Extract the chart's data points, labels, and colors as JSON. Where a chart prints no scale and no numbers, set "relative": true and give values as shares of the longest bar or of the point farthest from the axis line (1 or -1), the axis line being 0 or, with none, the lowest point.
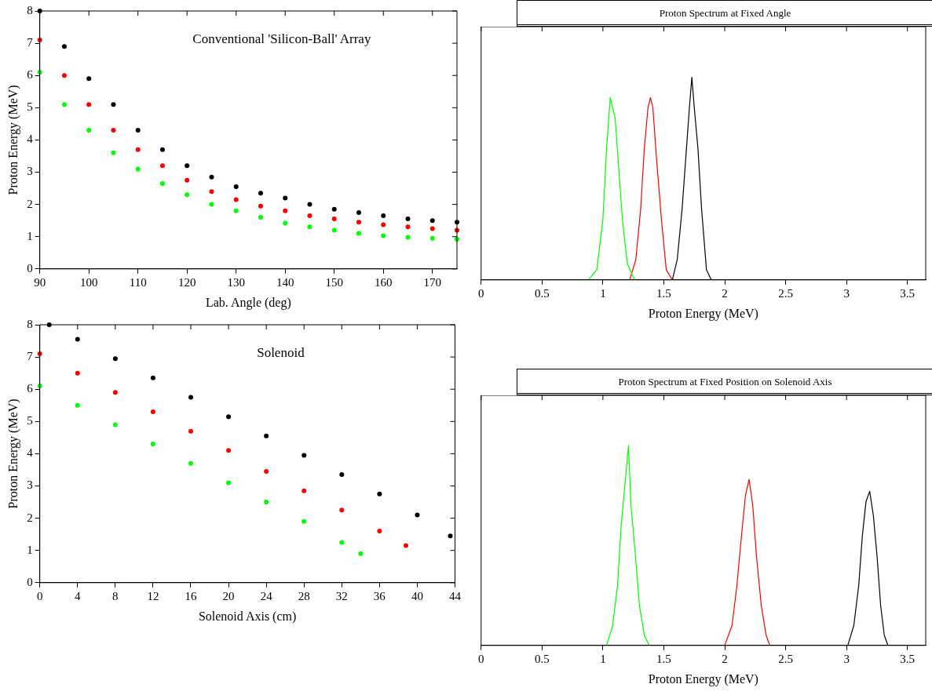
{
  "chart_data": [
    {
      "type": "scatter",
      "xlabel": "Lab. Angle (deg)",
      "ylabel": "Proton Energy (MeV)",
      "annotations": [
        "Conventional 'Silicon-Ball' Array"
      ],
      "xlim": [
        90,
        175
      ],
      "xticks": [
        90,
        100,
        110,
        120,
        130,
        140,
        150,
        160,
        170
      ],
      "ylim": [
        0,
        8
      ],
      "yticks": [
        0,
        1,
        2,
        3,
        4,
        5,
        6,
        7,
        8
      ],
      "grid": false,
      "legend": false,
      "marker": "circle",
      "x": [
        90,
        95,
        100,
        105,
        110,
        115,
        120,
        125,
        130,
        135,
        140,
        145,
        150,
        155,
        160,
        165,
        170,
        175
      ],
      "series": [
        {
          "color": "#000000",
          "values": [
            8,
            6.9,
            5.9,
            5.1,
            4.3,
            3.7,
            3.2,
            2.85,
            2.55,
            2.35,
            2.2,
            2.0,
            1.85,
            1.75,
            1.65,
            1.55,
            1.5,
            1.45
          ]
        },
        {
          "color": "#ff0000",
          "values": [
            7.1,
            6.0,
            5.1,
            4.3,
            3.7,
            3.2,
            2.75,
            2.4,
            2.15,
            1.95,
            1.8,
            1.65,
            1.55,
            1.45,
            1.37,
            1.3,
            1.25,
            1.2
          ]
        },
        {
          "color": "#00ff00",
          "values": [
            6.1,
            5.1,
            4.3,
            3.6,
            3.1,
            2.65,
            2.3,
            2.0,
            1.8,
            1.6,
            1.42,
            1.3,
            1.2,
            1.1,
            1.03,
            0.98,
            0.95,
            0.92
          ]
        }
      ]
    },
    {
      "type": "line",
      "title": "Proton Spectrum at Fixed Angle",
      "xlabel": "Proton Energy (MeV)",
      "relative": true,
      "xlim": [
        0,
        3.65
      ],
      "xticks": [
        0,
        0.5,
        1,
        1.5,
        2,
        2.5,
        3,
        3.5
      ],
      "tick_labels": "x",
      "grid": false,
      "legend": false,
      "marker": "none",
      "series": [
        {
          "color": "#00ff00",
          "x": [
            0.88,
            0.95,
            1.0,
            1.03,
            1.06,
            1.08,
            1.1,
            1.13,
            1.16,
            1.2,
            1.26
          ],
          "values": [
            0,
            0.05,
            0.3,
            0.65,
            0.9,
            0.85,
            0.8,
            0.55,
            0.3,
            0.08,
            0
          ]
        },
        {
          "color": "#ff0000",
          "x": [
            1.22,
            1.27,
            1.31,
            1.34,
            1.37,
            1.39,
            1.41,
            1.44,
            1.48,
            1.52,
            1.57
          ],
          "values": [
            0,
            0.1,
            0.35,
            0.65,
            0.85,
            0.9,
            0.85,
            0.6,
            0.3,
            0.05,
            0
          ]
        },
        {
          "color": "#000000",
          "x": [
            1.57,
            1.61,
            1.65,
            1.68,
            1.71,
            1.73,
            1.75,
            1.78,
            1.81,
            1.85,
            1.89
          ],
          "values": [
            0,
            0.1,
            0.35,
            0.6,
            0.85,
            1,
            0.85,
            0.65,
            0.35,
            0.05,
            0
          ]
        }
      ]
    },
    {
      "type": "scatter",
      "xlabel": "Solenoid Axis (cm)",
      "ylabel": "Proton Energy (MeV)",
      "annotations": [
        "Solenoid"
      ],
      "xlim": [
        0,
        44
      ],
      "xticks": [
        0,
        4,
        8,
        12,
        16,
        20,
        24,
        28,
        32,
        36,
        40,
        44
      ],
      "ylim": [
        0,
        8
      ],
      "yticks": [
        0,
        1,
        2,
        3,
        4,
        5,
        6,
        7,
        8
      ],
      "grid": false,
      "legend": false,
      "marker": "circle",
      "series": [
        {
          "color": "#000000",
          "x": [
            1,
            4,
            8,
            12,
            16,
            20,
            24,
            28,
            32,
            36,
            40,
            43.5
          ],
          "values": [
            8.0,
            7.55,
            6.95,
            6.35,
            5.75,
            5.15,
            4.55,
            3.95,
            3.35,
            2.75,
            2.1,
            1.45
          ]
        },
        {
          "color": "#ff0000",
          "x": [
            0,
            4,
            8,
            12,
            16,
            20,
            24,
            28,
            32,
            36,
            38.8
          ],
          "values": [
            7.1,
            6.5,
            5.9,
            5.3,
            4.7,
            4.1,
            3.45,
            2.85,
            2.25,
            1.6,
            1.15
          ]
        },
        {
          "color": "#00ff00",
          "x": [
            0,
            4,
            8,
            12,
            16,
            20,
            24,
            28,
            32,
            34
          ],
          "values": [
            6.1,
            5.5,
            4.9,
            4.3,
            3.7,
            3.1,
            2.5,
            1.9,
            1.25,
            0.9
          ]
        }
      ]
    },
    {
      "type": "line",
      "title": "Proton Spectrum at Fixed Position on Solenoid Axis",
      "xlabel": "Proton Energy (MeV)",
      "relative": true,
      "xlim": [
        0,
        3.65
      ],
      "xticks": [
        0,
        0.5,
        1,
        1.5,
        2,
        2.5,
        3,
        3.5
      ],
      "tick_labels": "x",
      "grid": false,
      "legend": false,
      "marker": "none",
      "series": [
        {
          "color": "#00ff00",
          "x": [
            1.03,
            1.08,
            1.12,
            1.15,
            1.18,
            1.21,
            1.23,
            1.26,
            1.3,
            1.34,
            1.38
          ],
          "values": [
            0,
            0.1,
            0.3,
            0.6,
            0.8,
            1,
            0.7,
            0.5,
            0.2,
            0.05,
            0
          ]
        },
        {
          "color": "#ff0000",
          "x": [
            2.0,
            2.06,
            2.1,
            2.13,
            2.17,
            2.2,
            2.23,
            2.26,
            2.3,
            2.34,
            2.37
          ],
          "values": [
            0,
            0.1,
            0.3,
            0.5,
            0.75,
            0.83,
            0.7,
            0.45,
            0.2,
            0.05,
            0
          ]
        },
        {
          "color": "#000000",
          "x": [
            3.01,
            3.06,
            3.1,
            3.13,
            3.16,
            3.19,
            3.22,
            3.25,
            3.28,
            3.31,
            3.34
          ],
          "values": [
            0,
            0.1,
            0.3,
            0.55,
            0.72,
            0.77,
            0.65,
            0.45,
            0.2,
            0.05,
            0
          ]
        }
      ]
    }
  ]
}
